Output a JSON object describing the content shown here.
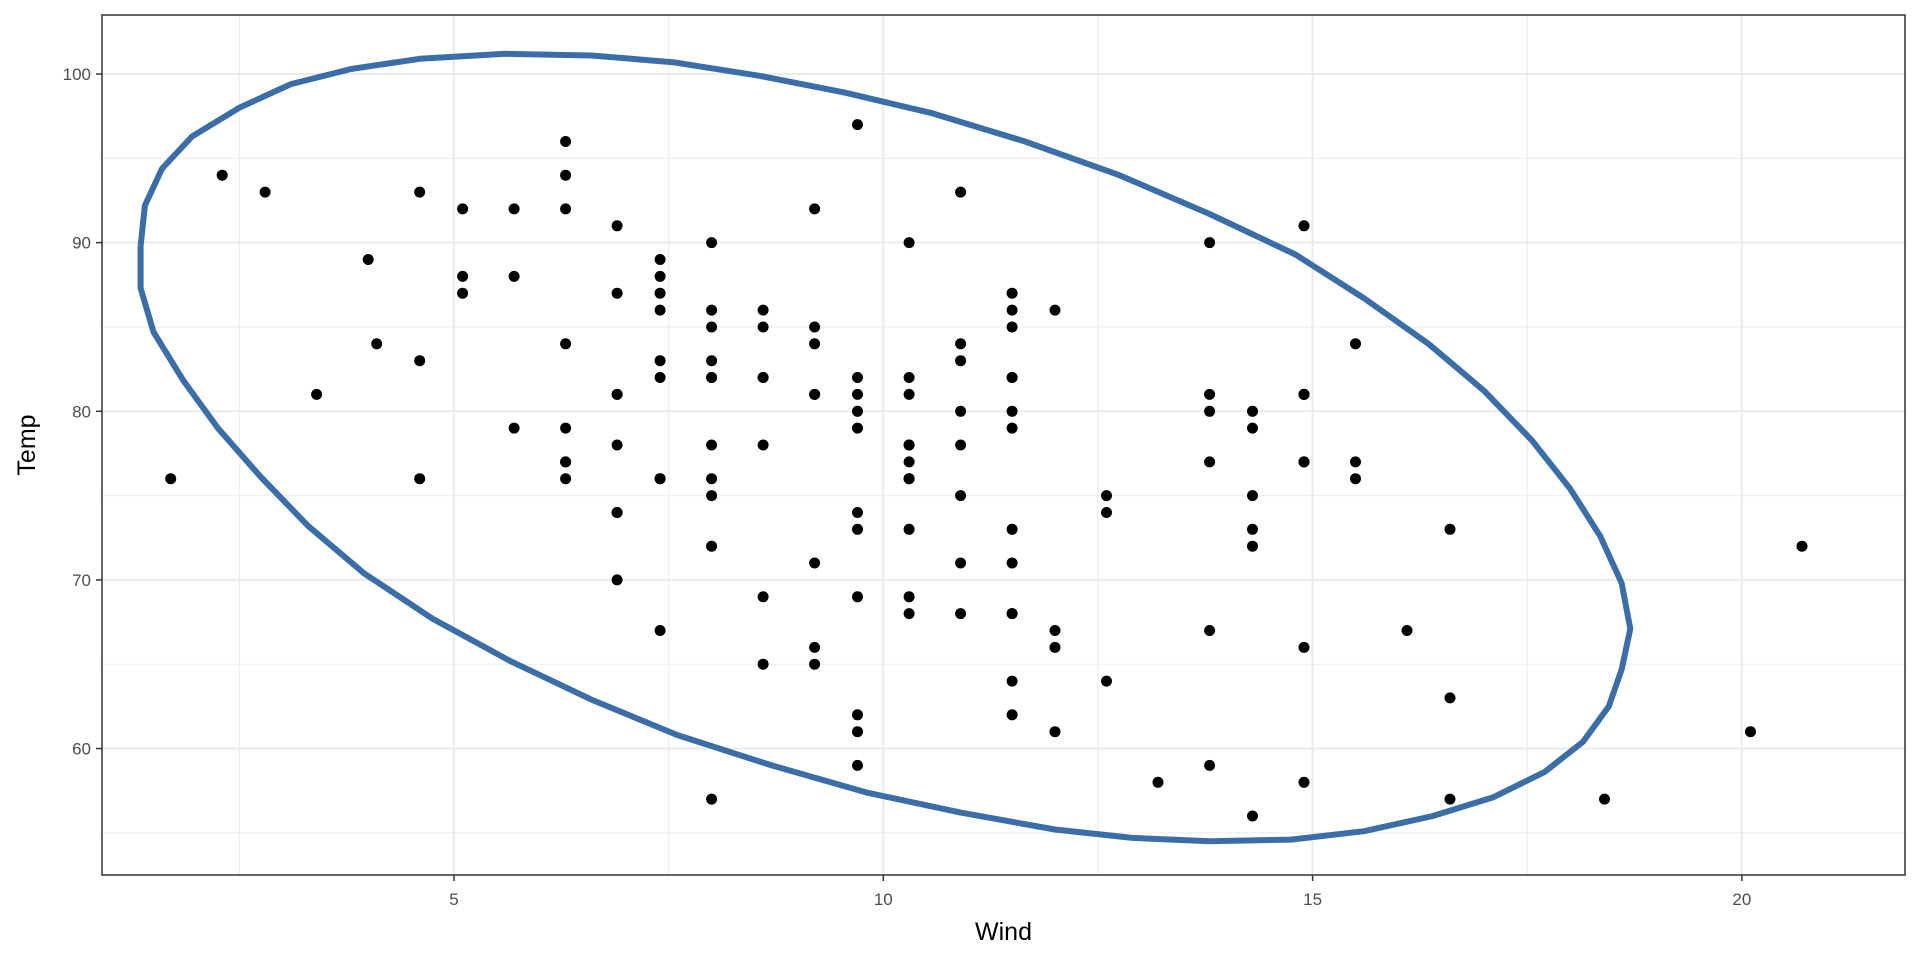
{
  "chart_data": {
    "type": "scatter",
    "title": "",
    "xlabel": "Wind",
    "ylabel": "Temp",
    "xlim": [
      0.9,
      21.9
    ],
    "ylim": [
      52.5,
      103.5
    ],
    "x_ticks": [
      5,
      10,
      15,
      20
    ],
    "y_ticks": [
      60,
      70,
      80,
      90,
      100
    ],
    "x_tick_labels": [
      "5",
      "10",
      "15",
      "20"
    ],
    "y_tick_labels": [
      "60",
      "70",
      "80",
      "90",
      "100"
    ],
    "grid": true,
    "legend": "none",
    "colors": {
      "points": "#000000",
      "ellipse": "#3b6ea8",
      "panel_border": "#333333",
      "grid": "#ebebeb"
    },
    "points": [
      [
        7.4,
        67
      ],
      [
        8.0,
        72
      ],
      [
        12.6,
        74
      ],
      [
        11.5,
        62
      ],
      [
        14.3,
        56
      ],
      [
        14.9,
        66
      ],
      [
        8.6,
        65
      ],
      [
        13.8,
        59
      ],
      [
        20.1,
        61
      ],
      [
        8.6,
        69
      ],
      [
        6.9,
        74
      ],
      [
        9.7,
        69
      ],
      [
        9.2,
        66
      ],
      [
        10.9,
        68
      ],
      [
        13.2,
        58
      ],
      [
        11.5,
        64
      ],
      [
        12.0,
        66
      ],
      [
        18.4,
        57
      ],
      [
        11.5,
        68
      ],
      [
        9.7,
        62
      ],
      [
        9.7,
        59
      ],
      [
        16.6,
        73
      ],
      [
        9.7,
        61
      ],
      [
        12.0,
        61
      ],
      [
        16.6,
        57
      ],
      [
        14.9,
        58
      ],
      [
        8.0,
        57
      ],
      [
        12.0,
        67
      ],
      [
        14.9,
        81
      ],
      [
        5.7,
        79
      ],
      [
        7.4,
        76
      ],
      [
        8.6,
        78
      ],
      [
        9.7,
        74
      ],
      [
        16.1,
        67
      ],
      [
        9.2,
        84
      ],
      [
        8.6,
        85
      ],
      [
        14.3,
        79
      ],
      [
        9.7,
        82
      ],
      [
        6.9,
        87
      ],
      [
        13.8,
        90
      ],
      [
        11.5,
        87
      ],
      [
        10.9,
        93
      ],
      [
        9.2,
        92
      ],
      [
        8.0,
        82
      ],
      [
        13.8,
        80
      ],
      [
        11.5,
        79
      ],
      [
        14.9,
        77
      ],
      [
        20.7,
        72
      ],
      [
        9.2,
        65
      ],
      [
        11.5,
        73
      ],
      [
        10.3,
        76
      ],
      [
        6.3,
        77
      ],
      [
        1.7,
        76
      ],
      [
        4.6,
        76
      ],
      [
        6.3,
        76
      ],
      [
        8.0,
        75
      ],
      [
        8.0,
        78
      ],
      [
        10.3,
        73
      ],
      [
        11.5,
        80
      ],
      [
        14.9,
        77
      ],
      [
        8.0,
        83
      ],
      [
        4.1,
        84
      ],
      [
        9.2,
        85
      ],
      [
        9.2,
        81
      ],
      [
        10.9,
        84
      ],
      [
        4.6,
        83
      ],
      [
        10.9,
        83
      ],
      [
        5.1,
        88
      ],
      [
        6.3,
        92
      ],
      [
        5.7,
        92
      ],
      [
        7.4,
        89
      ],
      [
        8.6,
        82
      ],
      [
        14.3,
        73
      ],
      [
        14.9,
        81
      ],
      [
        14.9,
        91
      ],
      [
        14.3,
        80
      ],
      [
        6.9,
        81
      ],
      [
        10.3,
        82
      ],
      [
        6.3,
        84
      ],
      [
        5.1,
        87
      ],
      [
        11.5,
        85
      ],
      [
        6.9,
        74
      ],
      [
        9.7,
        81
      ],
      [
        11.5,
        82
      ],
      [
        8.6,
        86
      ],
      [
        8.0,
        85
      ],
      [
        8.6,
        82
      ],
      [
        12.0,
        86
      ],
      [
        7.4,
        88
      ],
      [
        7.4,
        86
      ],
      [
        7.4,
        83
      ],
      [
        9.2,
        81
      ],
      [
        6.9,
        81
      ],
      [
        13.8,
        81
      ],
      [
        7.4,
        82
      ],
      [
        4.0,
        89
      ],
      [
        10.3,
        90
      ],
      [
        8.0,
        90
      ],
      [
        11.5,
        86
      ],
      [
        11.5,
        82
      ],
      [
        9.7,
        80
      ],
      [
        10.3,
        77
      ],
      [
        6.3,
        79
      ],
      [
        7.4,
        76
      ],
      [
        10.9,
        78
      ],
      [
        10.3,
        78
      ],
      [
        15.5,
        77
      ],
      [
        14.3,
        72
      ],
      [
        12.6,
        75
      ],
      [
        9.7,
        79
      ],
      [
        3.4,
        81
      ],
      [
        8.0,
        86
      ],
      [
        5.7,
        88
      ],
      [
        9.7,
        97
      ],
      [
        2.3,
        94
      ],
      [
        6.3,
        96
      ],
      [
        6.3,
        94
      ],
      [
        6.9,
        91
      ],
      [
        5.1,
        92
      ],
      [
        2.8,
        93
      ],
      [
        4.6,
        93
      ],
      [
        7.4,
        87
      ],
      [
        15.5,
        84
      ],
      [
        10.9,
        80
      ],
      [
        10.3,
        78
      ],
      [
        10.9,
        75
      ],
      [
        9.7,
        73
      ],
      [
        14.9,
        81
      ],
      [
        15.5,
        76
      ],
      [
        6.3,
        77
      ],
      [
        10.9,
        71
      ],
      [
        11.5,
        71
      ],
      [
        6.9,
        78
      ],
      [
        13.8,
        67
      ],
      [
        10.3,
        76
      ],
      [
        10.3,
        68
      ],
      [
        8.0,
        82
      ],
      [
        12.6,
        64
      ],
      [
        9.2,
        71
      ],
      [
        10.3,
        81
      ],
      [
        10.3,
        69
      ],
      [
        16.6,
        63
      ],
      [
        6.9,
        70
      ],
      [
        13.8,
        77
      ],
      [
        14.3,
        75
      ],
      [
        8.0,
        76
      ],
      [
        11.5,
        68
      ]
    ],
    "ellipse": {
      "type": "confidence-ellipse",
      "polygon": [
        [
          1.35,
          89.8
        ],
        [
          1.35,
          87.3
        ],
        [
          1.5,
          84.7
        ],
        [
          1.85,
          81.8
        ],
        [
          2.25,
          79.0
        ],
        [
          2.75,
          76.1
        ],
        [
          3.3,
          73.2
        ],
        [
          3.95,
          70.4
        ],
        [
          4.75,
          67.7
        ],
        [
          5.65,
          65.2
        ],
        [
          6.6,
          62.9
        ],
        [
          7.6,
          60.8
        ],
        [
          8.7,
          59.0
        ],
        [
          9.8,
          57.4
        ],
        [
          10.9,
          56.2
        ],
        [
          12.0,
          55.2
        ],
        [
          12.9,
          54.7
        ],
        [
          13.8,
          54.5
        ],
        [
          14.75,
          54.6
        ],
        [
          15.6,
          55.1
        ],
        [
          16.4,
          56.0
        ],
        [
          17.1,
          57.1
        ],
        [
          17.7,
          58.6
        ],
        [
          18.15,
          60.4
        ],
        [
          18.45,
          62.5
        ],
        [
          18.6,
          64.7
        ],
        [
          18.7,
          67.1
        ],
        [
          18.6,
          69.8
        ],
        [
          18.35,
          72.6
        ],
        [
          18.0,
          75.4
        ],
        [
          17.55,
          78.3
        ],
        [
          17.0,
          81.2
        ],
        [
          16.35,
          84.0
        ],
        [
          15.6,
          86.7
        ],
        [
          14.8,
          89.3
        ],
        [
          13.8,
          91.7
        ],
        [
          12.75,
          94.0
        ],
        [
          11.65,
          96.0
        ],
        [
          10.55,
          97.7
        ],
        [
          9.55,
          98.9
        ],
        [
          8.55,
          99.9
        ],
        [
          7.55,
          100.7
        ],
        [
          6.6,
          101.1
        ],
        [
          5.6,
          101.2
        ],
        [
          4.6,
          100.9
        ],
        [
          3.8,
          100.3
        ],
        [
          3.1,
          99.4
        ],
        [
          2.5,
          98.0
        ],
        [
          1.95,
          96.3
        ],
        [
          1.6,
          94.4
        ],
        [
          1.4,
          92.2
        ],
        [
          1.35,
          89.8
        ]
      ]
    }
  }
}
